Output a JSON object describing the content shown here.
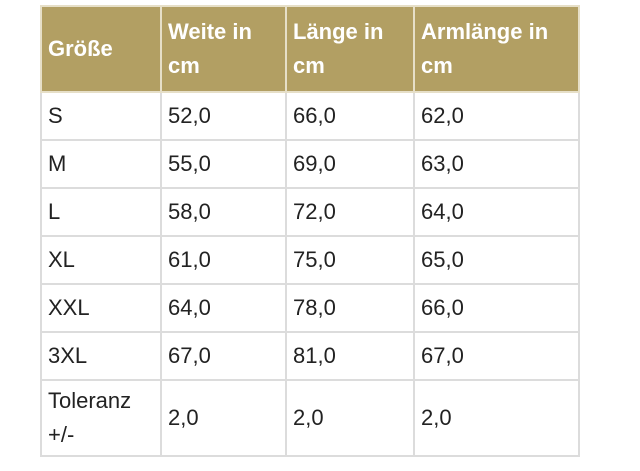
{
  "table": {
    "header": [
      "Größe",
      "Weite in cm",
      "Länge in cm",
      "Armlänge in cm"
    ],
    "rows": [
      [
        "S",
        "52,0",
        "66,0",
        "62,0"
      ],
      [
        "M",
        "55,0",
        "69,0",
        "63,0"
      ],
      [
        "L",
        "58,0",
        "72,0",
        "64,0"
      ],
      [
        "XL",
        "61,0",
        "75,0",
        "65,0"
      ],
      [
        "XXL",
        "64,0",
        "78,0",
        "66,0"
      ],
      [
        "3XL",
        "67,0",
        "81,0",
        "67,0"
      ],
      [
        "Toleranz +/-",
        "2,0",
        "2,0",
        "2,0"
      ]
    ]
  }
}
